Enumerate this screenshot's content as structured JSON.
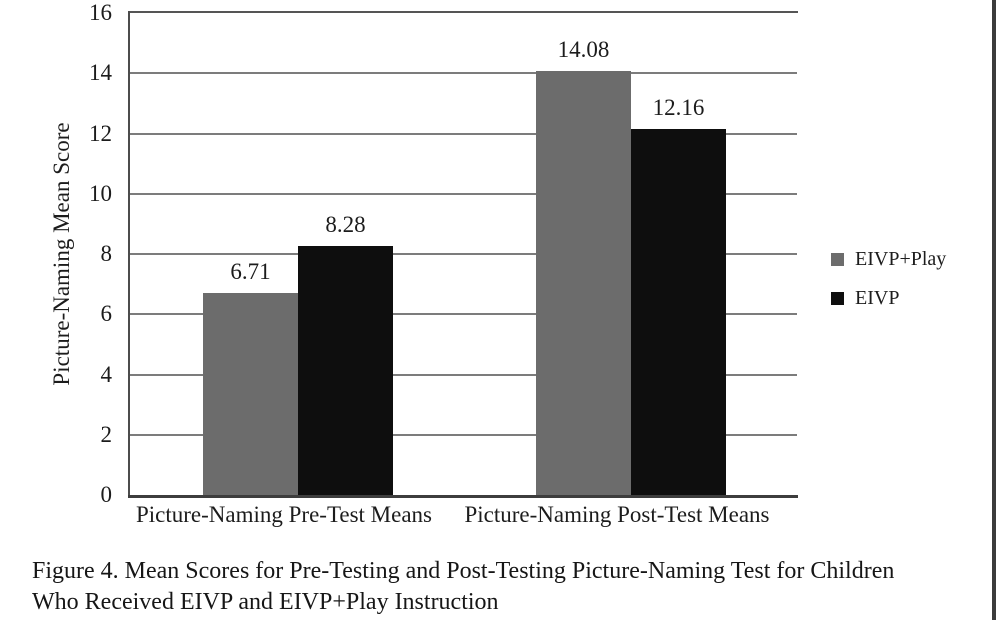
{
  "chart_data": {
    "type": "bar",
    "title": "",
    "ylabel": "Picture-Naming Mean Score",
    "xlabel": "",
    "ylim": [
      0,
      16
    ],
    "ytick_step": 2,
    "grid": true,
    "legend_position": "right",
    "categories": [
      "Picture-Naming Pre-Test Means",
      "Picture-Naming Post-Test Means"
    ],
    "series": [
      {
        "name": "EIVP+Play",
        "color": "#6c6c6c",
        "values": [
          6.71,
          14.08
        ]
      },
      {
        "name": "EIVP",
        "color": "#0e0e0e",
        "values": [
          8.28,
          12.16
        ]
      }
    ]
  },
  "caption": {
    "lines": [
      "Figure 4. Mean Scores for Pre-Testing and Post-Testing Picture-Naming Test for Children",
      "Who Received EIVP and EIVP+Play Instruction"
    ]
  },
  "colors": {
    "bar_gray": "#6c6c6c",
    "bar_black": "#0e0e0e",
    "gridline": "#7c7c7c",
    "axis": "#4c4c4c",
    "text": "#1c1c1c",
    "background": "#ffffff"
  }
}
